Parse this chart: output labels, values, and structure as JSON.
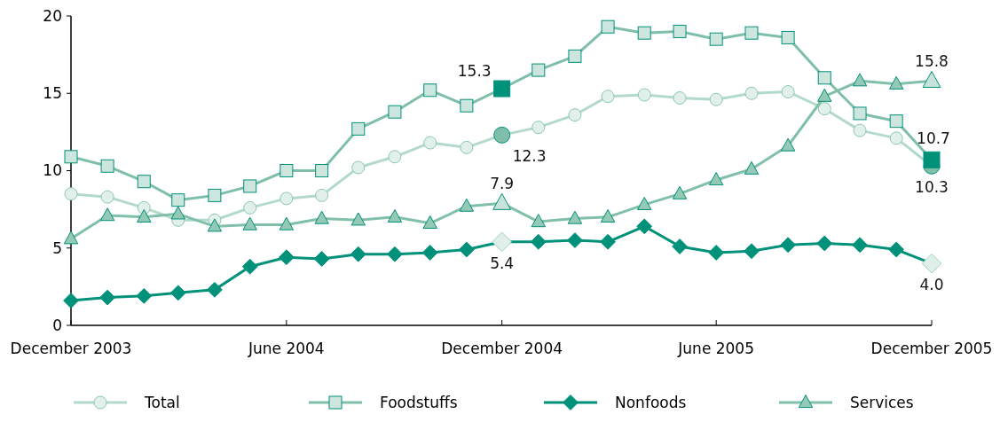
{
  "chart_data": {
    "type": "line",
    "x": [
      "2003-12",
      "2004-01",
      "2004-02",
      "2004-03",
      "2004-04",
      "2004-05",
      "2004-06",
      "2004-07",
      "2004-08",
      "2004-09",
      "2004-10",
      "2004-11",
      "2004-12",
      "2005-01",
      "2005-02",
      "2005-03",
      "2005-04",
      "2005-05",
      "2005-06",
      "2005-07",
      "2005-08",
      "2005-09",
      "2005-10",
      "2005-11",
      "2005-12"
    ],
    "xlim": [
      "2003-12",
      "2005-12"
    ],
    "xticks": [
      {
        "value": "2003-12",
        "label": "December 2003"
      },
      {
        "value": "2004-06",
        "label": "June 2004"
      },
      {
        "value": "2004-12",
        "label": "December 2004"
      },
      {
        "value": "2005-06",
        "label": "June 2005"
      },
      {
        "value": "2005-12",
        "label": "December 2005"
      }
    ],
    "ylim": [
      0,
      20
    ],
    "yticks": [
      0,
      5,
      10,
      15,
      20
    ],
    "grid": false,
    "legend": "bottom",
    "series": [
      {
        "name": "Total",
        "color": "#b3d9cb",
        "marker": "circle",
        "values": [
          8.5,
          8.3,
          7.6,
          6.8,
          6.8,
          7.6,
          8.2,
          8.4,
          10.2,
          10.9,
          11.8,
          11.5,
          12.3,
          12.8,
          13.6,
          14.8,
          14.9,
          14.7,
          14.6,
          15.0,
          15.1,
          14.0,
          12.6,
          12.1,
          10.3
        ],
        "value_labels": [
          null,
          null,
          null,
          null,
          null,
          null,
          null,
          null,
          null,
          null,
          null,
          null,
          "12.3",
          null,
          null,
          null,
          null,
          null,
          null,
          null,
          null,
          null,
          null,
          null,
          "10.3"
        ]
      },
      {
        "name": "Foodstuffs",
        "color": "#7fbfa9",
        "marker": "square",
        "values": [
          10.9,
          10.3,
          9.3,
          8.1,
          8.4,
          9.0,
          10.0,
          10.0,
          12.7,
          13.8,
          15.2,
          14.2,
          15.3,
          16.5,
          17.4,
          19.3,
          18.9,
          19.0,
          18.5,
          18.9,
          18.6,
          16.0,
          13.7,
          13.2,
          10.7
        ],
        "value_labels": [
          null,
          null,
          null,
          null,
          null,
          null,
          null,
          null,
          null,
          null,
          null,
          null,
          "15.3",
          null,
          null,
          null,
          null,
          null,
          null,
          null,
          null,
          null,
          null,
          null,
          "10.7"
        ]
      },
      {
        "name": "Nonfoods",
        "color": "#00917a",
        "marker": "diamond",
        "values": [
          1.6,
          1.8,
          1.9,
          2.1,
          2.3,
          3.8,
          4.4,
          4.3,
          4.6,
          4.6,
          4.7,
          4.9,
          5.4,
          5.4,
          5.5,
          5.4,
          6.4,
          5.1,
          4.7,
          4.8,
          5.2,
          5.3,
          5.2,
          4.9,
          4.0
        ],
        "value_labels": [
          null,
          null,
          null,
          null,
          null,
          null,
          null,
          null,
          null,
          null,
          null,
          null,
          "5.4",
          null,
          null,
          null,
          null,
          null,
          null,
          null,
          null,
          null,
          null,
          null,
          "4.0"
        ]
      },
      {
        "name": "Services",
        "color": "#80bfa8",
        "marker": "triangle",
        "values": [
          5.6,
          7.1,
          7.0,
          7.2,
          6.4,
          6.5,
          6.5,
          6.9,
          6.8,
          7.0,
          6.6,
          7.7,
          7.9,
          6.7,
          6.9,
          7.0,
          7.8,
          8.5,
          9.4,
          10.1,
          11.6,
          14.8,
          15.8,
          15.6,
          15.8
        ],
        "value_labels": [
          null,
          null,
          null,
          null,
          null,
          null,
          null,
          null,
          null,
          null,
          null,
          null,
          "7.9",
          null,
          null,
          null,
          null,
          null,
          null,
          null,
          null,
          null,
          null,
          null,
          "15.8"
        ]
      }
    ]
  }
}
